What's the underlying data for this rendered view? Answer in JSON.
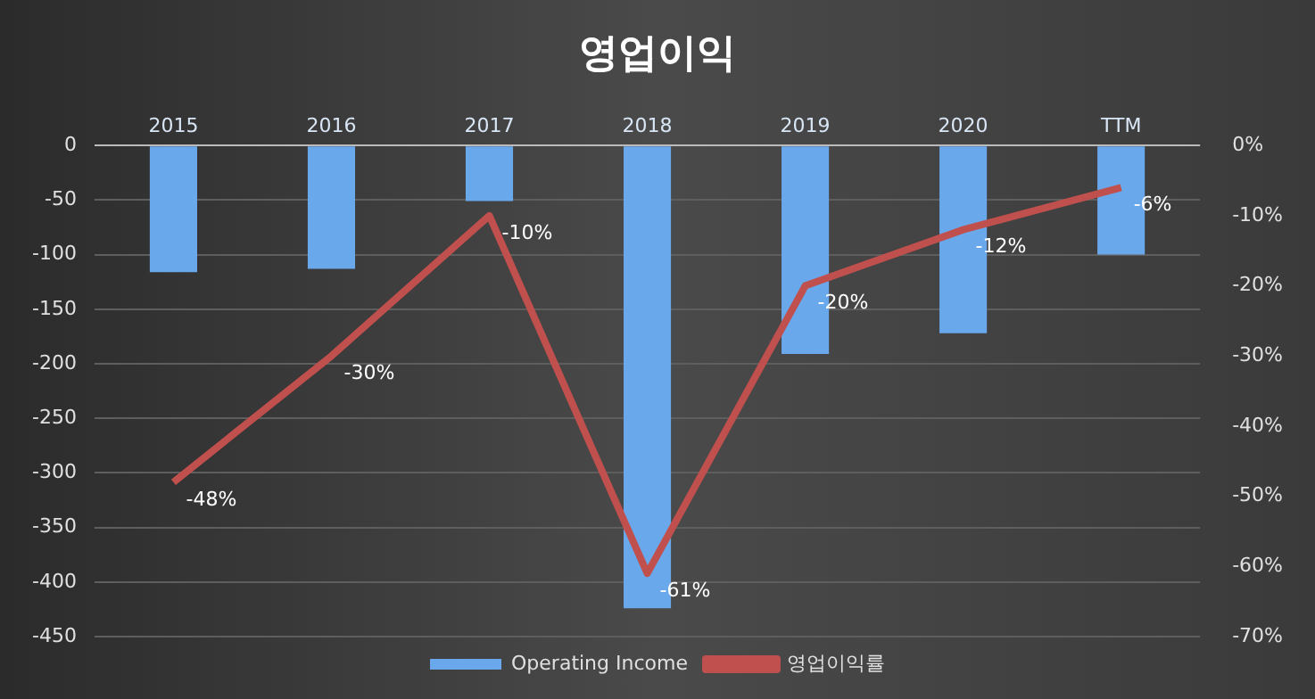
{
  "chart_data": {
    "type": "bar",
    "title": "영업이익",
    "categories": [
      "2015",
      "2016",
      "2017",
      "2018",
      "2019",
      "2020",
      "TTM"
    ],
    "series": [
      {
        "name": "Operating Income",
        "color": "#6aa8ec",
        "values": [
          -116,
          -113,
          -51,
          -424,
          -191,
          -172,
          -100
        ]
      },
      {
        "name": "영업이익률",
        "type": "line",
        "axis": "y2",
        "color": "#c0504d",
        "values": [
          -48,
          -30,
          -10,
          -61,
          -20,
          -12,
          -6
        ],
        "value_labels": [
          "-48%",
          "-30%",
          "-10%",
          "-61%",
          "-20%",
          "-12%",
          "-6%"
        ]
      }
    ],
    "ylim": [
      -450,
      0
    ],
    "yticks": [
      -450,
      -400,
      -350,
      -300,
      -250,
      -200,
      -150,
      -100,
      -50,
      0
    ],
    "y2lim": [
      -70,
      0
    ],
    "y2ticks": [
      {
        "value": -70,
        "label": "-70%"
      },
      {
        "value": -60,
        "label": "-60%"
      },
      {
        "value": -50,
        "label": "-50%"
      },
      {
        "value": -40,
        "label": "-40%"
      },
      {
        "value": -30,
        "label": "-30%"
      },
      {
        "value": -20,
        "label": "-20%"
      },
      {
        "value": -10,
        "label": "-10%"
      },
      {
        "value": 0,
        "label": "0%"
      }
    ],
    "grid": "y",
    "legend": "bottom",
    "marker": "none",
    "line_style": "solid"
  }
}
